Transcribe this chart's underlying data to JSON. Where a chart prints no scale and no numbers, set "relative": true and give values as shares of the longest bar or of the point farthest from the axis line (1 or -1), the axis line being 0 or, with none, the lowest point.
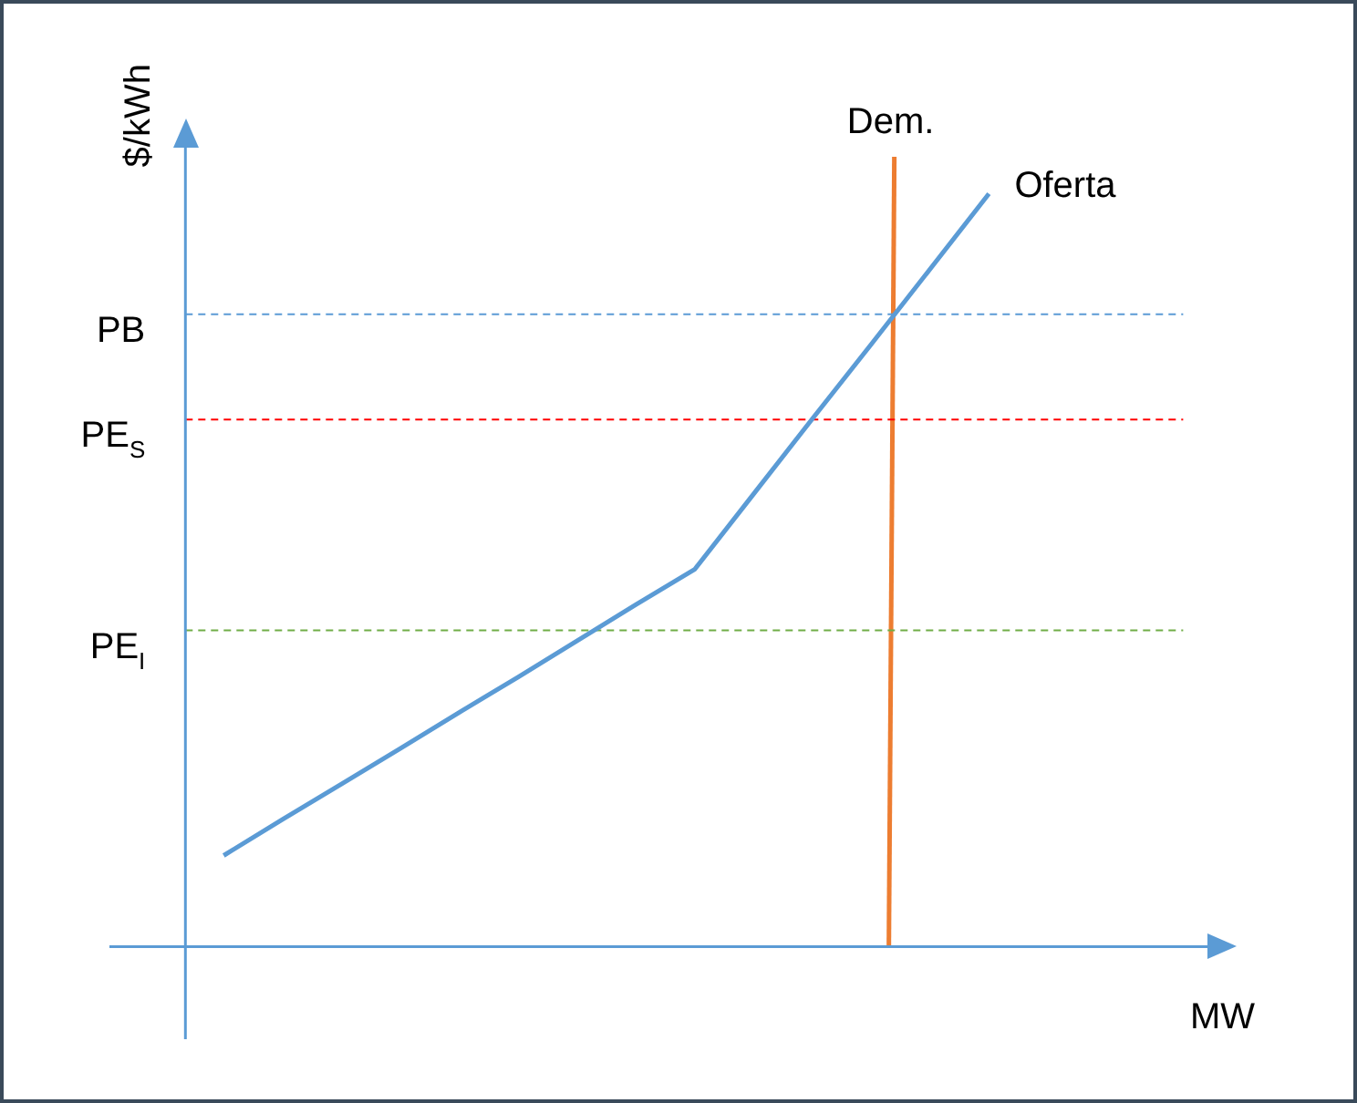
{
  "chart_data": {
    "type": "line",
    "relative": true,
    "ylabel": "$/kWh",
    "xlabel": "MW",
    "tick_labels": false,
    "legend": false,
    "marker": "none",
    "categories": [
      null,
      null,
      null,
      null,
      null,
      null,
      null,
      null,
      null,
      null,
      null,
      null,
      null,
      null
    ],
    "series": [
      {
        "name": "Oferta",
        "color": "#5b9bd5",
        "values": [
          0.121,
          0.169,
          0.216,
          0.263,
          0.311,
          0.358,
          0.406,
          0.454,
          0.501,
          0.601,
          0.701,
          0.8,
          0.9,
          1
        ]
      }
    ],
    "annotations": [
      "Dem."
    ],
    "ref_lines": [
      {
        "axis": "y",
        "value": 0.84,
        "label": "PB",
        "color": "#5b9bd5",
        "line_style": "dashed"
      },
      {
        "axis": "y",
        "value": 0.7,
        "label": "PE$_{S}$",
        "color": "#ff0000",
        "line_style": "dashed"
      },
      {
        "axis": "y",
        "value": 0.42,
        "label": "PE$_{I}$",
        "color": "#70ad47",
        "line_style": "dashed"
      }
    ]
  }
}
